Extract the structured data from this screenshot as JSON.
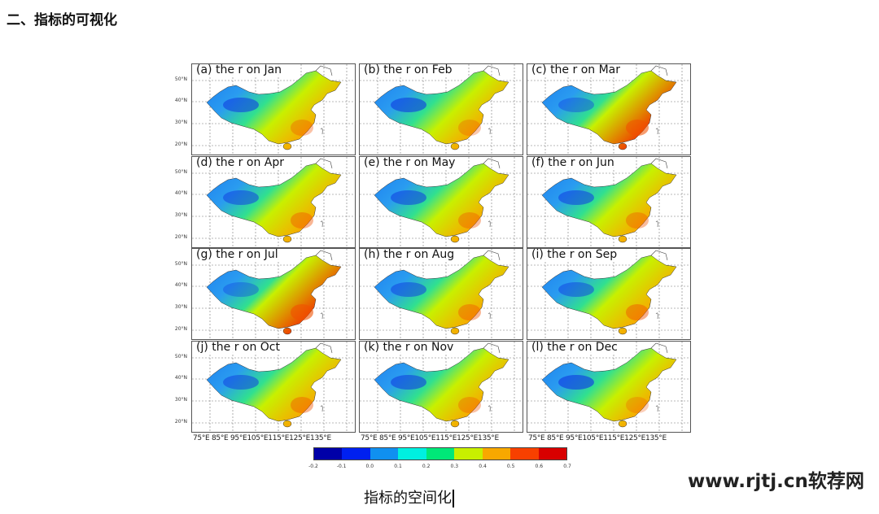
{
  "section_title": "二、指标的可视化",
  "figure": {
    "panels": [
      {
        "label": "(a) the r on Jan"
      },
      {
        "label": "(b) the r on Feb"
      },
      {
        "label": "(c) the r on Mar"
      },
      {
        "label": "(d) the r on Apr"
      },
      {
        "label": "(e) the r on May"
      },
      {
        "label": "(f) the r on Jun"
      },
      {
        "label": "(g) the r on Jul"
      },
      {
        "label": "(h) the r on Aug"
      },
      {
        "label": "(i) the r on Sep"
      },
      {
        "label": "(j) the r on Oct"
      },
      {
        "label": "(k) the r on Nov"
      },
      {
        "label": "(l) the r on Dec"
      }
    ],
    "lat_labels": [
      "50°N",
      "40°N",
      "30°N",
      "20°N"
    ],
    "lon_labels": "75°E 85°E 95°E105°E115°E125°E135°E",
    "colorbar": {
      "ticks": [
        "-0.2",
        "-0.1",
        "0.0",
        "0.1",
        "0.2",
        "0.3",
        "0.4",
        "0.5",
        "0.6",
        "0.7"
      ],
      "colors": [
        "#0000a8",
        "#0020f0",
        "#1090f0",
        "#00f0e0",
        "#00e878",
        "#c8f000",
        "#f8a800",
        "#f84000",
        "#d80000"
      ]
    }
  },
  "caption": "指标的空间化",
  "watermark": "www.rjtj.cn软荐网"
}
